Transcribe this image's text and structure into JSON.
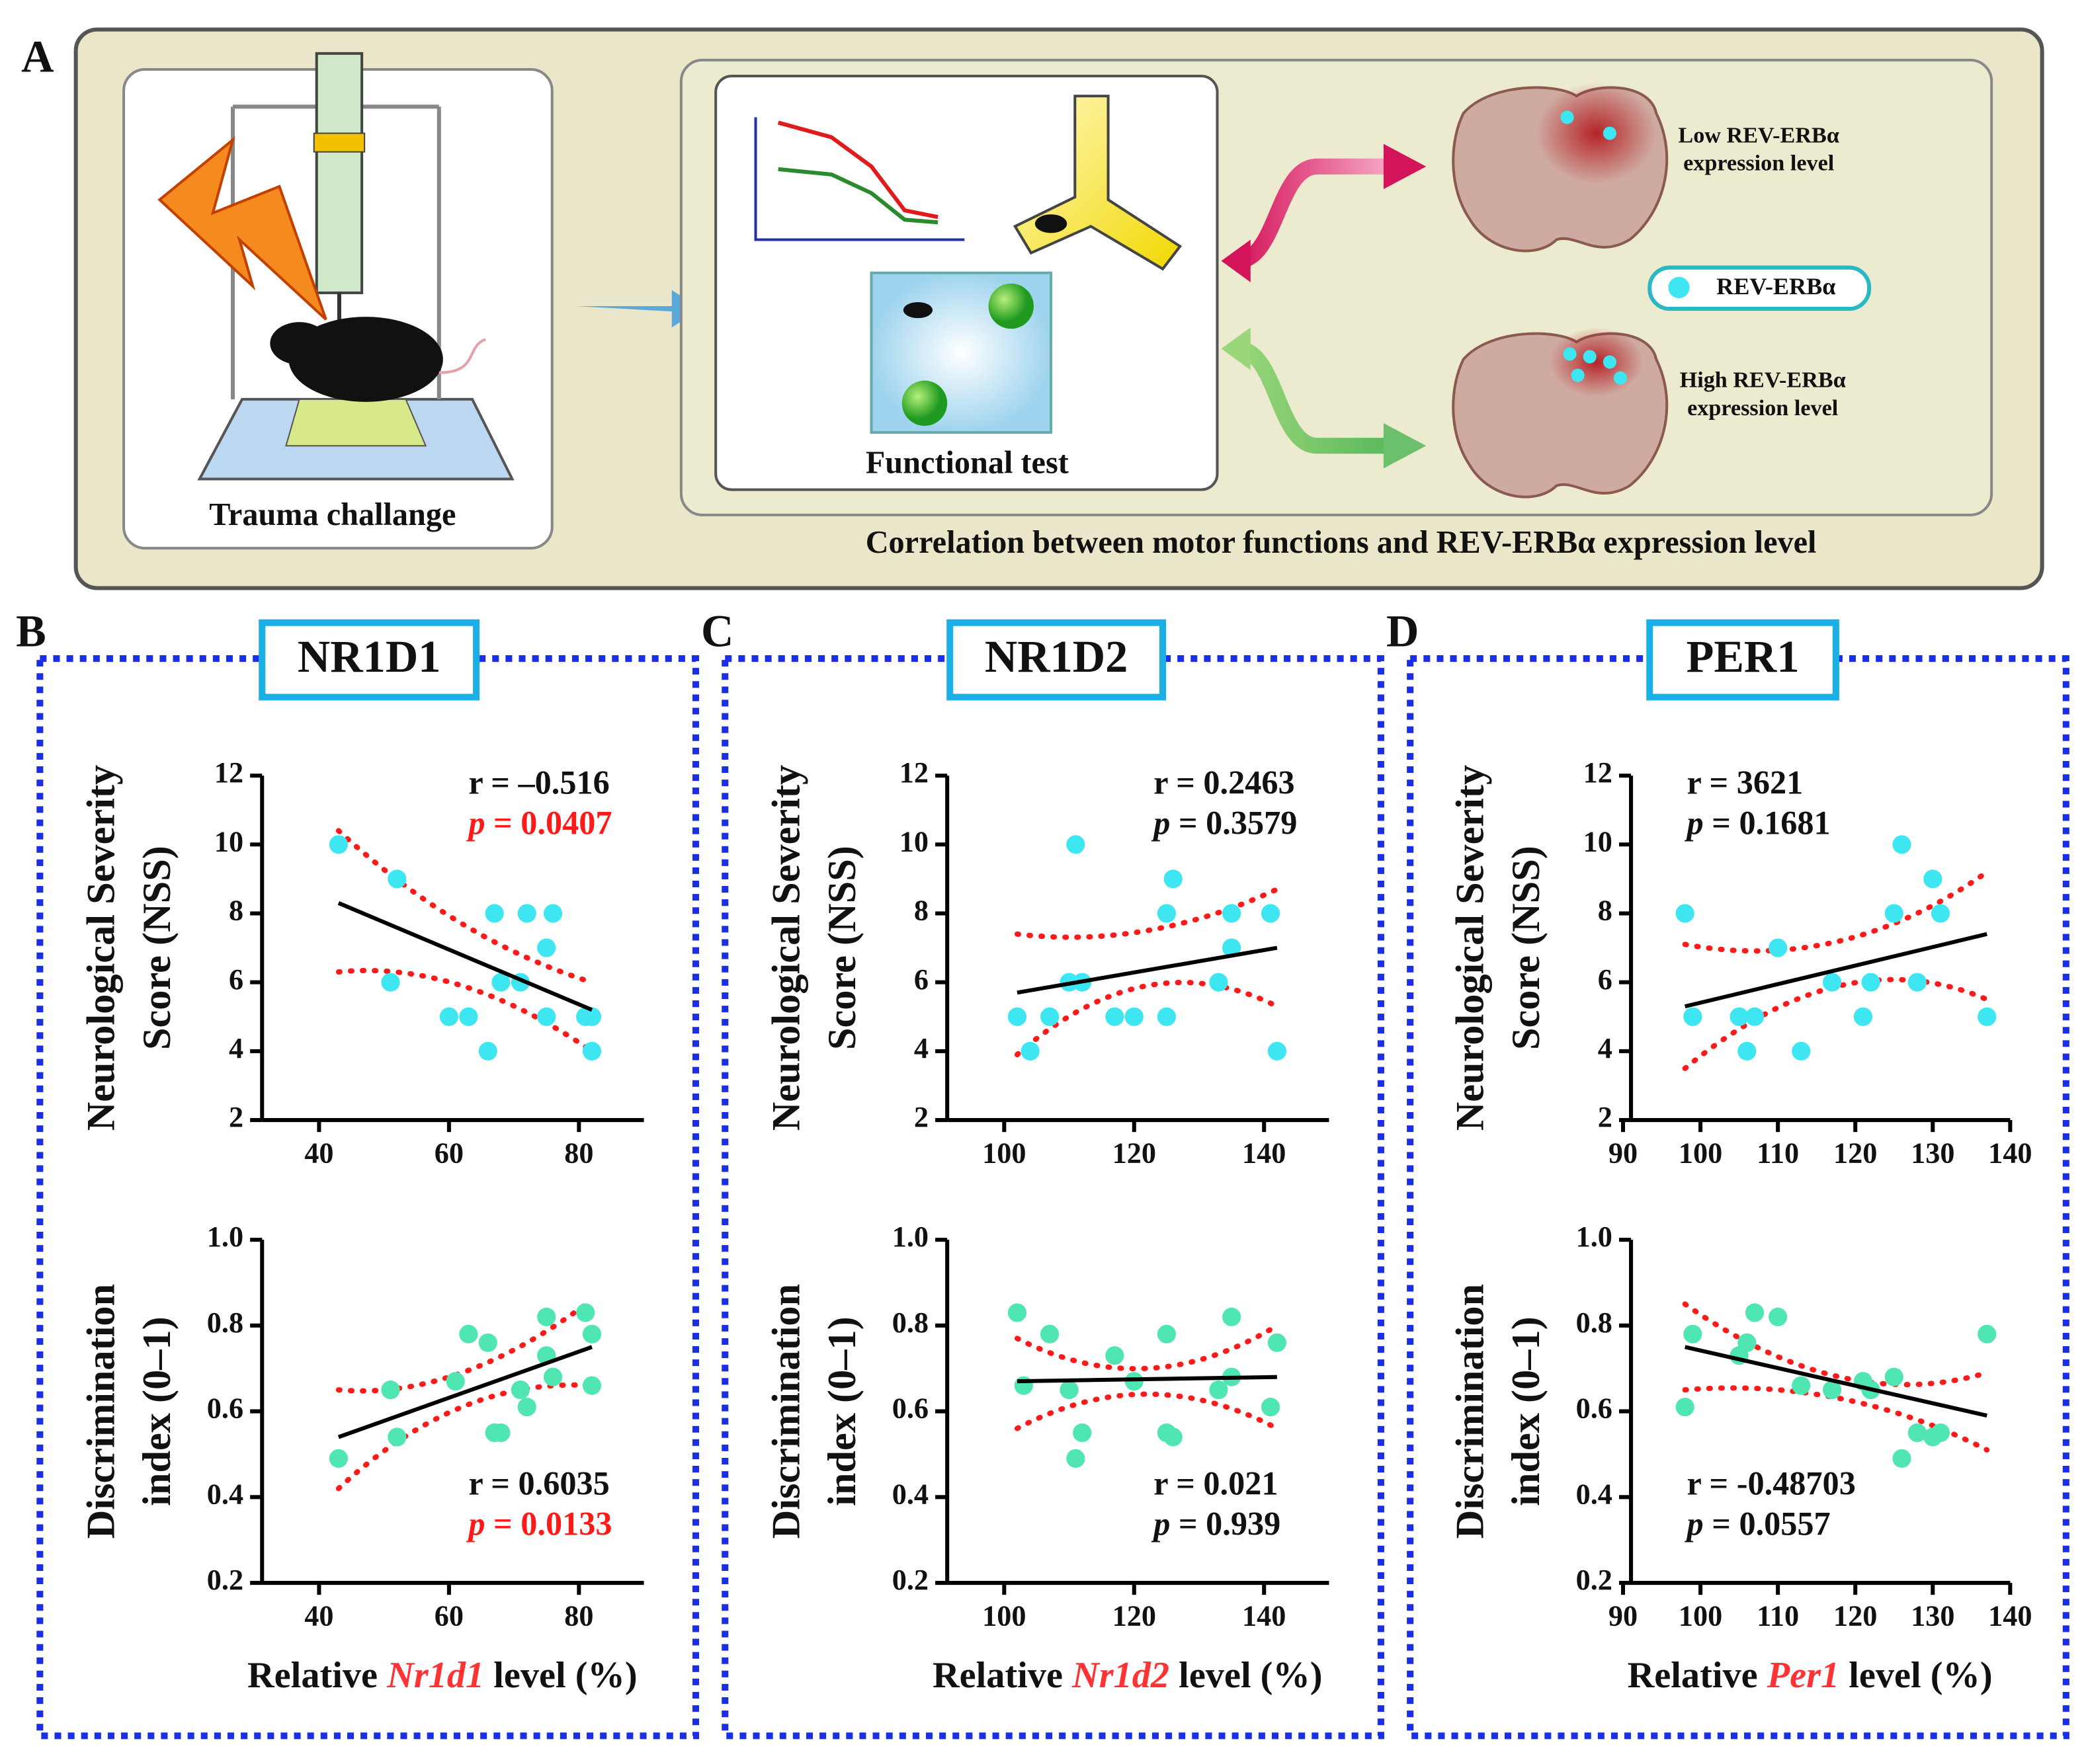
{
  "panel_a": {
    "letter": "A",
    "left_caption": "Trauma challange",
    "test_caption": "Functional test",
    "low_1": "Low REV-ERBα",
    "low_2": "expression level",
    "legend": "REV-ERBα",
    "high_1": "High REV-ERBα",
    "high_2": "expression level",
    "caption": "Correlation between motor functions and REV-ERBα expression level"
  },
  "panels": [
    {
      "letter": "B",
      "title": "NR1D1"
    },
    {
      "letter": "C",
      "title": "NR1D2"
    },
    {
      "letter": "D",
      "title": "PER1"
    }
  ],
  "chart_data": [
    {
      "type": "scatter",
      "ylabel": [
        "Neurological Severity",
        "Score (NSS)"
      ],
      "color": "#3ee6f2",
      "xlim": [
        30,
        90
      ],
      "xticks": [
        40,
        60,
        80
      ],
      "ylim": [
        2,
        12
      ],
      "yticks": [
        2,
        4,
        6,
        8,
        10,
        12
      ],
      "x": [
        43,
        52,
        51,
        60,
        63,
        66,
        67,
        68,
        71,
        72,
        76,
        75,
        75,
        81,
        82,
        82
      ],
      "y": [
        10,
        9,
        6,
        5,
        5,
        4,
        8,
        6,
        6,
        8,
        8,
        7,
        5,
        5,
        5,
        4
      ],
      "fit_line": {
        "x": [
          43,
          82
        ],
        "y": [
          8.3,
          5.2
        ]
      },
      "upper_band": {
        "x": [
          43,
          62,
          82
        ],
        "y": [
          10.4,
          7.7,
          6.0
        ]
      },
      "lower_band": {
        "x": [
          43,
          62,
          82
        ],
        "y": [
          6.3,
          5.9,
          4.0
        ]
      },
      "annotation": {
        "r": "r = –0.516",
        "p": "p",
        "p_rest": " = 0.0407",
        "p_color": "#ff1a1a",
        "corner": "top-right"
      }
    },
    {
      "type": "scatter",
      "ylabel": [
        "Discrimination",
        "index (0–1)"
      ],
      "xlabel": [
        "Relative ",
        "Nr1d1",
        " level (%)"
      ],
      "color": "#4fe6b2",
      "xlim": [
        30,
        90
      ],
      "xticks": [
        40,
        60,
        80
      ],
      "ylim": [
        0.2,
        1
      ],
      "yticks": [
        0.2,
        0.4,
        0.6,
        0.8,
        {
          "value": 1,
          "label": "1.0"
        }
      ],
      "x": [
        43,
        51,
        52,
        61,
        63,
        66,
        67,
        68,
        71,
        72,
        75,
        75,
        76,
        81,
        82,
        82
      ],
      "y": [
        0.49,
        0.65,
        0.54,
        0.67,
        0.78,
        0.76,
        0.55,
        0.55,
        0.65,
        0.61,
        0.82,
        0.73,
        0.68,
        0.83,
        0.78,
        0.66
      ],
      "fit_line": {
        "x": [
          43,
          82
        ],
        "y": [
          0.54,
          0.75
        ]
      },
      "upper_band": {
        "x": [
          43,
          62,
          82
        ],
        "y": [
          0.65,
          0.69,
          0.86
        ]
      },
      "lower_band": {
        "x": [
          43,
          62,
          82
        ],
        "y": [
          0.42,
          0.61,
          0.66
        ]
      },
      "annotation": {
        "r": "r = 0.6035",
        "p": "p",
        "p_rest": " = 0.0133",
        "p_color": "#ff1a1a",
        "corner": "bottom-right"
      }
    },
    {
      "type": "scatter",
      "ylabel": [
        "Neurological Severity",
        "Score (NSS)"
      ],
      "color": "#3ee6f2",
      "xlim": [
        90,
        150
      ],
      "xticks": [
        100,
        120,
        140
      ],
      "ylim": [
        2,
        12
      ],
      "yticks": [
        2,
        4,
        6,
        8,
        10,
        12
      ],
      "x": [
        102,
        104,
        107,
        110,
        111,
        112,
        117,
        120,
        125,
        125,
        126,
        133,
        135,
        135,
        141,
        142
      ],
      "y": [
        5,
        4,
        5,
        6,
        10,
        6,
        5,
        5,
        8,
        5,
        9,
        6,
        8,
        7,
        8,
        4
      ],
      "fit_line": {
        "x": [
          102,
          142
        ],
        "y": [
          5.7,
          7.0
        ]
      },
      "upper_band": {
        "x": [
          102,
          122,
          142
        ],
        "y": [
          7.4,
          7.5,
          8.7
        ]
      },
      "lower_band": {
        "x": [
          102,
          122,
          142
        ],
        "y": [
          3.9,
          5.9,
          5.3
        ]
      },
      "annotation": {
        "r": "r = 0.2463",
        "p": "p",
        "p_rest": " = 0.3579",
        "p_color": "#111111",
        "corner": "top-right"
      }
    },
    {
      "type": "scatter",
      "ylabel": [
        "Discrimination",
        "index (0–1)"
      ],
      "xlabel": [
        "Relative ",
        "Nr1d2",
        " level (%)"
      ],
      "color": "#4fe6b2",
      "xlim": [
        90,
        150
      ],
      "xticks": [
        100,
        120,
        140
      ],
      "ylim": [
        0.2,
        1
      ],
      "yticks": [
        0.2,
        0.4,
        0.6,
        0.8,
        {
          "value": 1,
          "label": "1.0"
        }
      ],
      "x": [
        102,
        103,
        107,
        110,
        111,
        112,
        117,
        120,
        125,
        125,
        126,
        133,
        135,
        135,
        141,
        142
      ],
      "y": [
        0.83,
        0.66,
        0.78,
        0.65,
        0.49,
        0.55,
        0.73,
        0.67,
        0.78,
        0.55,
        0.54,
        0.65,
        0.82,
        0.68,
        0.61,
        0.76
      ],
      "fit_line": {
        "x": [
          102,
          142
        ],
        "y": [
          0.67,
          0.68
        ]
      },
      "upper_band": {
        "x": [
          102,
          122,
          142
        ],
        "y": [
          0.77,
          0.7,
          0.8
        ]
      },
      "lower_band": {
        "x": [
          102,
          122,
          142
        ],
        "y": [
          0.56,
          0.64,
          0.56
        ]
      },
      "annotation": {
        "r": "r = 0.021",
        "p": "p",
        "p_rest": " = 0.939",
        "p_color": "#111111",
        "corner": "bottom-right"
      }
    },
    {
      "type": "scatter",
      "ylabel": [
        "Neurological Severity",
        "Score (NSS)"
      ],
      "color": "#3ee6f2",
      "xlim": [
        90,
        140
      ],
      "xticks": [
        90,
        100,
        110,
        120,
        130,
        140
      ],
      "ylim": [
        2,
        12
      ],
      "yticks": [
        2,
        4,
        6,
        8,
        10,
        12
      ],
      "x": [
        98,
        99,
        105,
        106,
        107,
        110,
        113,
        117,
        121,
        122,
        125,
        126,
        128,
        130,
        131,
        137
      ],
      "y": [
        8,
        5,
        5,
        4,
        5,
        7,
        4,
        6,
        5,
        6,
        8,
        10,
        6,
        9,
        8,
        5
      ],
      "fit_line": {
        "x": [
          98,
          137
        ],
        "y": [
          5.3,
          7.4
        ]
      },
      "upper_band": {
        "x": [
          98,
          118,
          137
        ],
        "y": [
          7.1,
          7.2,
          9.2
        ]
      },
      "lower_band": {
        "x": [
          98,
          118,
          137
        ],
        "y": [
          3.5,
          5.9,
          5.5
        ]
      },
      "annotation": {
        "r": "r = 3621",
        "p": "p",
        "p_rest": " = 0.1681",
        "p_color": "#111111",
        "corner": "top-left"
      }
    },
    {
      "type": "scatter",
      "ylabel": [
        "Discrimination",
        "index (0–1)"
      ],
      "xlabel": [
        "Relative ",
        "Per1",
        " level (%)"
      ],
      "color": "#4fe6b2",
      "xlim": [
        90,
        140
      ],
      "xticks": [
        90,
        100,
        110,
        120,
        130,
        140
      ],
      "ylim": [
        0.2,
        1
      ],
      "yticks": [
        0.2,
        0.4,
        0.6,
        0.8,
        {
          "value": 1,
          "label": "1.0"
        }
      ],
      "x": [
        98,
        99,
        105,
        106,
        107,
        110,
        113,
        117,
        121,
        122,
        125,
        126,
        128,
        130,
        131,
        137
      ],
      "y": [
        0.61,
        0.78,
        0.73,
        0.76,
        0.83,
        0.82,
        0.66,
        0.65,
        0.67,
        0.65,
        0.68,
        0.49,
        0.55,
        0.54,
        0.55,
        0.78
      ],
      "fit_line": {
        "x": [
          98,
          137
        ],
        "y": [
          0.75,
          0.59
        ]
      },
      "upper_band": {
        "x": [
          98,
          118,
          137
        ],
        "y": [
          0.85,
          0.68,
          0.69
        ]
      },
      "lower_band": {
        "x": [
          98,
          118,
          137
        ],
        "y": [
          0.65,
          0.63,
          0.51
        ]
      },
      "annotation": {
        "r": "r = -0.48703",
        "p": "p",
        "p_rest": " = 0.0557",
        "p_color": "#111111",
        "corner": "bottom-left"
      }
    }
  ]
}
